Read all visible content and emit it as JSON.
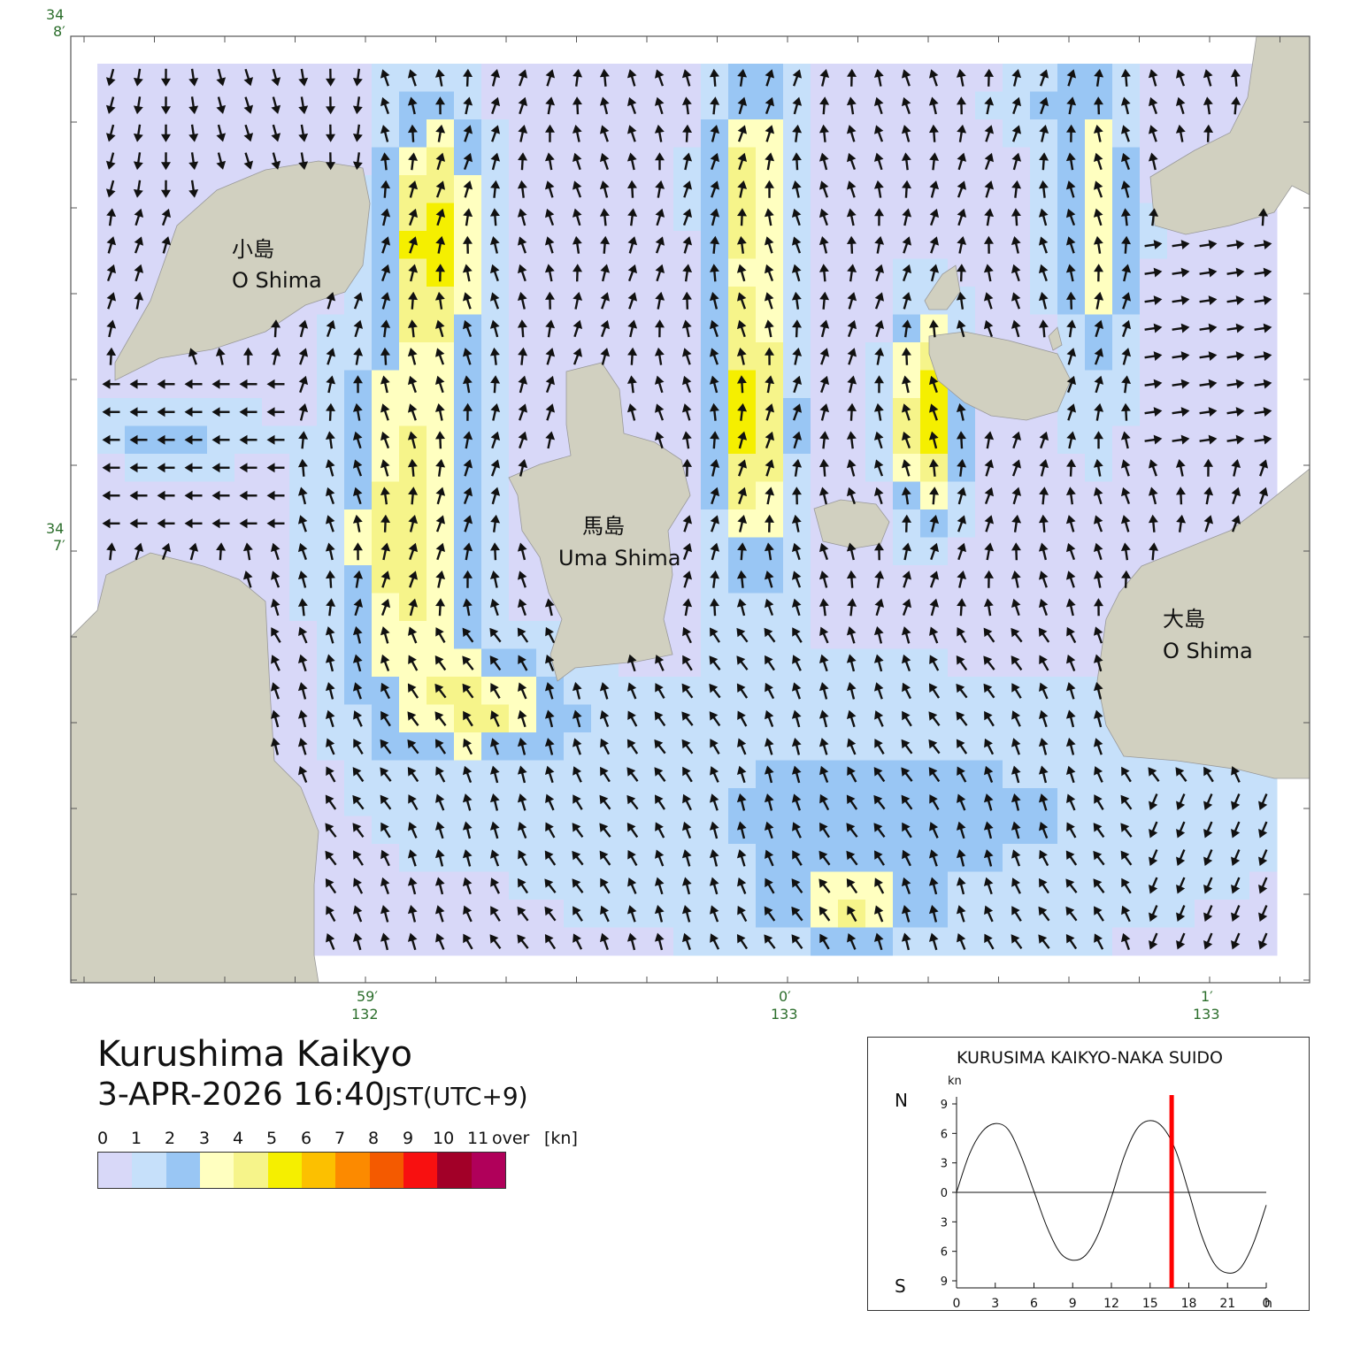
{
  "map": {
    "colors": {
      "land": "#d1d0c0",
      "frame": "#555555",
      "coord_label": "#2c6e2c"
    },
    "lat_labels": [
      {
        "deg": "34",
        "min": "8′"
      },
      {
        "deg": "34",
        "min": "7′"
      }
    ],
    "lon_labels": [
      {
        "min": "59′",
        "deg": "132"
      },
      {
        "min": "0′",
        "deg": "133"
      },
      {
        "min": "1′",
        "deg": "133"
      }
    ],
    "islands": [
      {
        "name_jp": "小島",
        "name_en": "O Shima"
      },
      {
        "name_jp": "馬島",
        "name_en": "Uma Shima"
      },
      {
        "name_jp": "大島",
        "name_en": "O Shima"
      }
    ]
  },
  "title": {
    "place": "Kurushima Kaikyo",
    "datetime": "3-APR-2026 16:40",
    "timezone": "JST(UTC+9)"
  },
  "legend": {
    "labels": [
      "0",
      "1",
      "2",
      "3",
      "4",
      "5",
      "6",
      "7",
      "8",
      "9",
      "10",
      "11",
      "over",
      "[kn]"
    ],
    "colors": [
      "#d8d8f8",
      "#c6e0fa",
      "#99c6f4",
      "#ffffc0",
      "#f6f48a",
      "#f5ef00",
      "#fcc000",
      "#fc8a00",
      "#f45a00",
      "#f81010",
      "#a20028",
      "#b0005a"
    ]
  },
  "tide_chart": {
    "title": "KURUSIMA KAIKYO-NAKA SUIDO",
    "unit": "kn",
    "north_label": "N",
    "south_label": "S",
    "y_ticks": [
      "9",
      "6",
      "3",
      "0",
      "3",
      "6",
      "9"
    ],
    "x_ticks": [
      "0",
      "3",
      "6",
      "9",
      "12",
      "15",
      "18",
      "21",
      "0"
    ],
    "x_unit": "h",
    "current_time_hours": 16.67,
    "current_marker_color": "#ff0000"
  },
  "chart_data": {
    "type": "line",
    "title": "KURUSIMA KAIKYO-NAKA SUIDO",
    "xlabel": "h",
    "ylabel": "kn",
    "xlim": [
      0,
      24
    ],
    "ylim": [
      -9,
      9
    ],
    "series": [
      {
        "x": [
          0,
          1,
          2,
          3,
          4,
          5,
          6,
          7,
          8,
          9,
          10,
          11,
          12,
          13,
          14,
          15,
          16,
          17,
          18,
          19,
          20,
          21,
          22,
          23,
          24
        ],
        "values": [
          0,
          3.9,
          6.2,
          7.0,
          6.4,
          3.7,
          0.1,
          -3.5,
          -6.1,
          -6.9,
          -6.4,
          -4.2,
          -0.5,
          3.7,
          6.5,
          7.3,
          6.6,
          4.2,
          0.0,
          -4.4,
          -7.3,
          -8.2,
          -7.7,
          -5.2,
          -1.3
        ]
      }
    ],
    "current_time": 16.67
  }
}
